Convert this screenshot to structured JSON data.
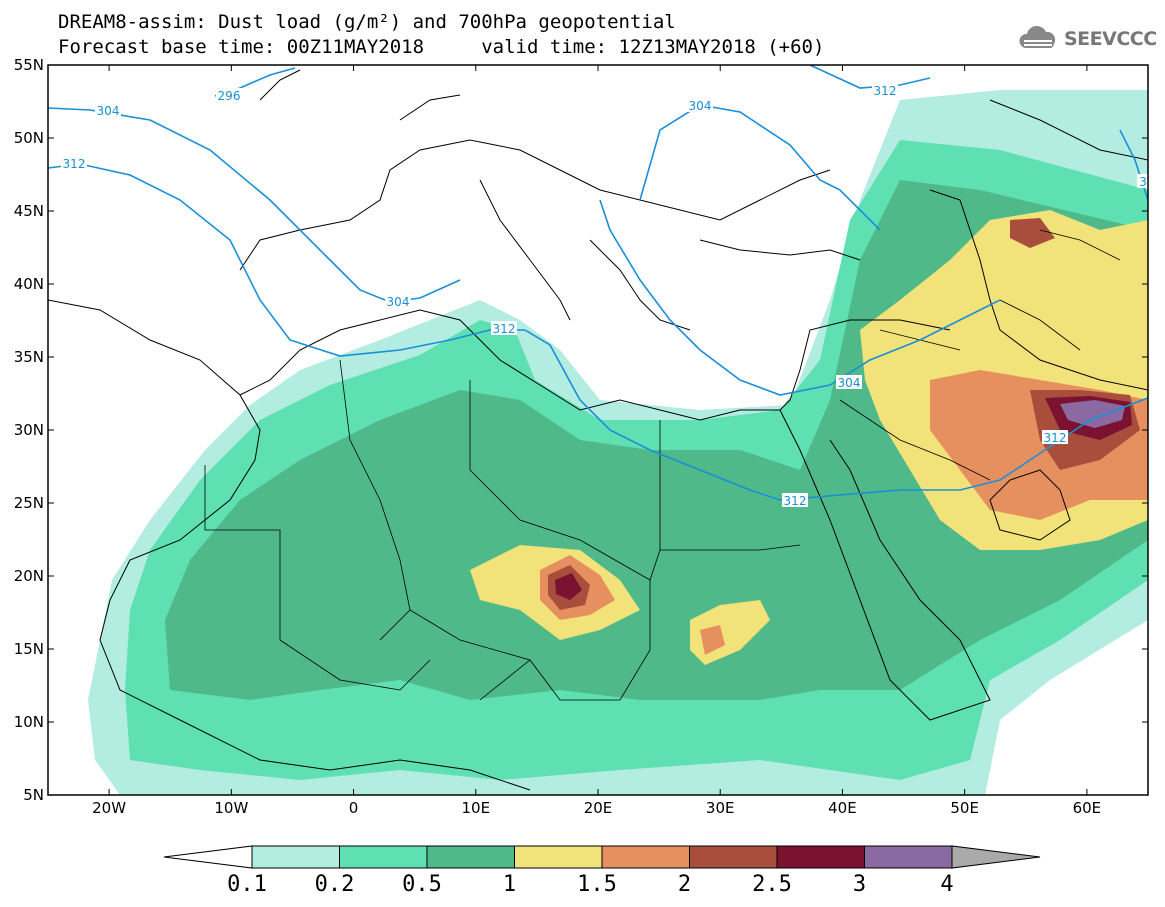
{
  "header": {
    "line1": "DREAM8-assim: Dust load (g/m²) and 700hPa geopotential",
    "line2": "Forecast base time: 00Z11MAY2018     valid time: 12Z13MAY2018 (+60)"
  },
  "logo": {
    "text": "SEEVCCC",
    "icon": "cloud-icon"
  },
  "map": {
    "lon_range": [
      -25,
      65
    ],
    "lat_range": [
      5,
      55
    ],
    "lat_ticks": [
      "55N",
      "50N",
      "45N",
      "40N",
      "35N",
      "30N",
      "25N",
      "20N",
      "15N",
      "10N",
      "5N"
    ],
    "lon_ticks": [
      "20W",
      "10W",
      "0",
      "10E",
      "20E",
      "30E",
      "40E",
      "50E",
      "60E"
    ],
    "contour_labels": [
      "296",
      "304",
      "312",
      "304",
      "312",
      "304",
      "312",
      "304",
      "312",
      "312",
      "3"
    ],
    "contour_color": "#1a8fd8",
    "coastline_color": "#000000",
    "background": "#ffffff"
  },
  "colorbar": {
    "labels": [
      "0.1",
      "0.2",
      "0.5",
      "1",
      "1.5",
      "2",
      "2.5",
      "3",
      "4"
    ],
    "colors": [
      "#b3ece0",
      "#5fe0b2",
      "#4fb98a",
      "#f2e27a",
      "#e69060",
      "#a94e3c",
      "#7a1230",
      "#8a6aa0"
    ],
    "under_color": "#ffffff",
    "over_color": "#aaaaaa"
  }
}
